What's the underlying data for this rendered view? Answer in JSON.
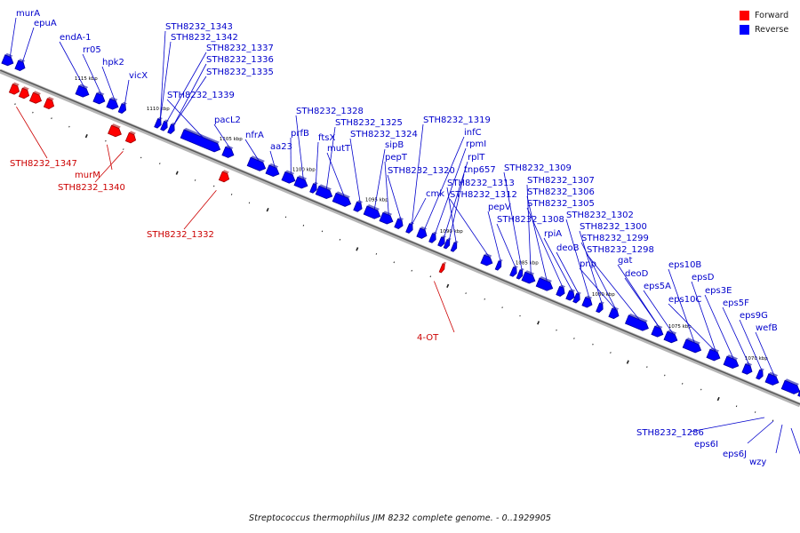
{
  "legend": [
    {
      "label": "Forward",
      "color": "#ff0000"
    },
    {
      "label": "Reverse",
      "color": "#0000ff"
    }
  ],
  "caption": "Streptococcus thermophilus JIM 8232 complete genome. - 0..1929905",
  "colors": {
    "forward": "#ff0000",
    "forward_dark": "#a30000",
    "reverse": "#0000ff",
    "reverse_dark": "#00009f",
    "backbone": "#888888",
    "label_forward": "#cc0000",
    "label_reverse": "#0000cc"
  },
  "kbp_ticks": [
    {
      "label": "1115 kbp",
      "pos": 1115
    },
    {
      "label": "1110 kbp",
      "pos": 1110
    },
    {
      "label": "1105 kbp",
      "pos": 1105
    },
    {
      "label": "1100 kbp",
      "pos": 1100
    },
    {
      "label": "1095 kbp",
      "pos": 1095
    },
    {
      "label": "1090 kbp",
      "pos": 1090
    },
    {
      "label": "1085 kbp",
      "pos": 1085
    },
    {
      "label": "1080 kbp",
      "pos": 1080
    },
    {
      "label": "1075 kbp",
      "pos": 1075
    },
    {
      "label": "1070 kbp",
      "pos": 1070
    }
  ],
  "reverse_genes": [
    {
      "label": "murA"
    },
    {
      "label": "epuA"
    },
    {
      "label": "endA-1"
    },
    {
      "label": "rr05"
    },
    {
      "label": "hpk2"
    },
    {
      "label": "vicX"
    },
    {
      "label": "STH8232_1343"
    },
    {
      "label": "STH8232_1342"
    },
    {
      "label": "STH8232_1337"
    },
    {
      "label": "STH8232_1336"
    },
    {
      "label": "STH8232_1335"
    },
    {
      "label": "STH8232_1339"
    },
    {
      "label": "pacL2"
    },
    {
      "label": "nfrA"
    },
    {
      "label": "aa23"
    },
    {
      "label": "prfB"
    },
    {
      "label": "STH8232_1328"
    },
    {
      "label": "ftsX"
    },
    {
      "label": "STH8232_1325"
    },
    {
      "label": "mutT"
    },
    {
      "label": "STH8232_1324"
    },
    {
      "label": "sipB"
    },
    {
      "label": "pepT"
    },
    {
      "label": "STH8232_1320"
    },
    {
      "label": "STH8232_1319"
    },
    {
      "label": "cmk"
    },
    {
      "label": "infC"
    },
    {
      "label": "rpmI"
    },
    {
      "label": "rplT"
    },
    {
      "label": "tnp657"
    },
    {
      "label": "STH8232_1313"
    },
    {
      "label": "STH8232_1312"
    },
    {
      "label": "pepV"
    },
    {
      "label": "STH8232_1309"
    },
    {
      "label": "STH8232_1308"
    },
    {
      "label": "STH8232_1307"
    },
    {
      "label": "STH8232_1306"
    },
    {
      "label": "STH8232_1305"
    },
    {
      "label": "rpiA"
    },
    {
      "label": "deoB"
    },
    {
      "label": "STH8232_1302"
    },
    {
      "label": "STH8232_1300"
    },
    {
      "label": "STH8232_1299"
    },
    {
      "label": "pnp"
    },
    {
      "label": "STH8232_1298"
    },
    {
      "label": "gat"
    },
    {
      "label": "deoD"
    },
    {
      "label": "eps5A"
    },
    {
      "label": "eps10B"
    },
    {
      "label": "eps10C"
    },
    {
      "label": "epsD"
    },
    {
      "label": "eps3E"
    },
    {
      "label": "eps5F"
    },
    {
      "label": "eps9G"
    },
    {
      "label": "wefB"
    }
  ],
  "forward_genes": [
    {
      "label": "STH8232_1347"
    },
    {
      "label": "murM"
    },
    {
      "label": "STH8232_1340"
    },
    {
      "label": "STH8232_1332"
    },
    {
      "label": "4-OT"
    }
  ],
  "bottom_labels": [
    {
      "label": "STH8232_1286"
    },
    {
      "label": "eps6I"
    },
    {
      "label": "eps6J"
    },
    {
      "label": "wzy"
    }
  ]
}
